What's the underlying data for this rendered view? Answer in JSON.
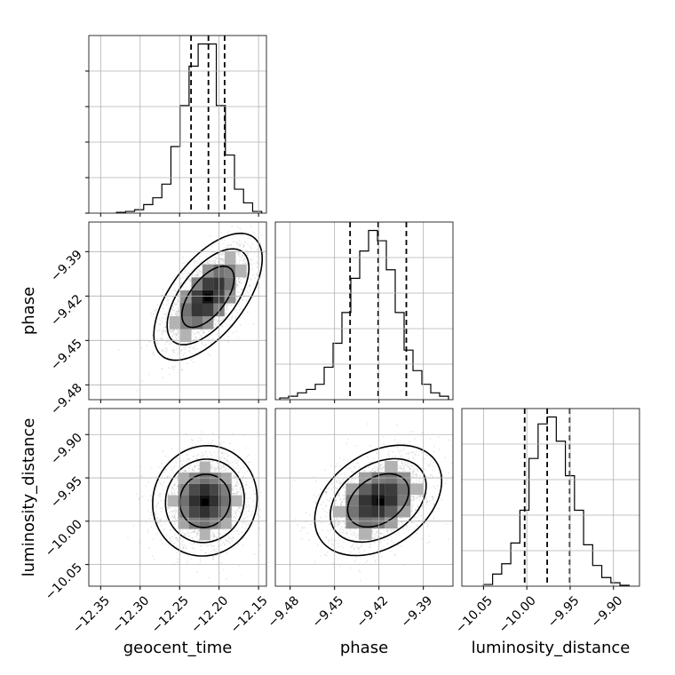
{
  "chart_data": {
    "type": "corner",
    "parameters": [
      {
        "name": "geocent_time",
        "label": "geocent_time",
        "range": [
          -12.365,
          -12.14
        ],
        "ticks": [
          -12.35,
          -12.3,
          -12.25,
          -12.2,
          -12.15
        ],
        "tick_labels": [
          "−12.35",
          "−12.30",
          "−12.25",
          "−12.20",
          "−12.15"
        ],
        "quantiles": [
          -12.2355,
          -12.2135,
          -12.193
        ],
        "histogram": {
          "bin_edges": [
            -12.33,
            -12.3185,
            -12.307,
            -12.2955,
            -12.284,
            -12.2725,
            -12.261,
            -12.2495,
            -12.238,
            -12.2265,
            -12.215,
            -12.2035,
            -12.192,
            -12.1805,
            -12.169,
            -12.1575,
            -12.146
          ],
          "counts": [
            0.005,
            0.01,
            0.02,
            0.05,
            0.09,
            0.17,
            0.39,
            0.63,
            0.86,
            0.99,
            0.99,
            0.63,
            0.34,
            0.14,
            0.06,
            0.01
          ]
        }
      },
      {
        "name": "phase",
        "label": "phase",
        "range": [
          -9.49,
          -9.37
        ],
        "ticks": [
          -9.48,
          -9.45,
          -9.42,
          -9.39
        ],
        "tick_labels": [
          "−9.48",
          "−9.45",
          "−9.42",
          "−9.39"
        ],
        "quantiles": [
          -9.4395,
          -9.4205,
          -9.4015
        ],
        "histogram": {
          "bin_edges": [
            -9.487,
            -9.481,
            -9.475,
            -9.469,
            -9.463,
            -9.457,
            -9.451,
            -9.445,
            -9.439,
            -9.433,
            -9.427,
            -9.421,
            -9.415,
            -9.409,
            -9.403,
            -9.397,
            -9.391,
            -9.385,
            -9.379,
            -9.373
          ],
          "counts": [
            0.01,
            0.02,
            0.04,
            0.06,
            0.09,
            0.19,
            0.33,
            0.51,
            0.71,
            0.87,
            0.99,
            0.93,
            0.76,
            0.51,
            0.29,
            0.17,
            0.09,
            0.04,
            0.02
          ]
        }
      },
      {
        "name": "luminosity_distance",
        "label": "luminosity_distance",
        "range": [
          -10.075,
          -9.87
        ],
        "ticks": [
          -10.05,
          -10.0,
          -9.95,
          -9.9
        ],
        "tick_labels": [
          "−10.05",
          "−10.00",
          "−9.95",
          "−9.90"
        ],
        "quantiles": [
          -10.0025,
          -9.9765,
          -9.9505
        ],
        "histogram": {
          "bin_edges": [
            -10.05,
            -10.0395,
            -10.029,
            -10.0185,
            -10.008,
            -9.9975,
            -9.987,
            -9.9765,
            -9.966,
            -9.9555,
            -9.945,
            -9.9345,
            -9.924,
            -9.9135,
            -9.903,
            -9.8925,
            -9.882
          ],
          "counts": [
            0.01,
            0.07,
            0.13,
            0.25,
            0.44,
            0.74,
            0.94,
            0.98,
            0.84,
            0.64,
            0.44,
            0.24,
            0.12,
            0.05,
            0.02,
            0.005
          ]
        }
      }
    ],
    "pairs": [
      {
        "x": "geocent_time",
        "y": "phase",
        "mean": [
          -12.214,
          -9.4205
        ],
        "sd": [
          0.028,
          0.0175
        ],
        "corr": 0.6,
        "peak": [
          -12.214,
          -9.421
        ],
        "contours": [
          {
            "level": 0.5,
            "scale": 1.18
          },
          {
            "level": 1.0,
            "scale": 1.85
          },
          {
            "level": 1.5,
            "scale": 2.45
          }
        ]
      },
      {
        "x": "geocent_time",
        "y": "luminosity_distance",
        "mean": [
          -12.218,
          -9.9765
        ],
        "sd": [
          0.027,
          0.026
        ],
        "corr": 0.05,
        "peak": [
          -12.218,
          -9.978
        ],
        "contours": [
          {
            "level": 0.5,
            "scale": 1.18
          },
          {
            "level": 1.0,
            "scale": 1.85
          },
          {
            "level": 1.5,
            "scale": 2.45
          }
        ]
      },
      {
        "x": "phase",
        "y": "luminosity_distance",
        "mean": [
          -9.4205,
          -9.976
        ],
        "sd": [
          0.0175,
          0.026
        ],
        "corr": 0.35,
        "peak": [
          -9.419,
          -9.978
        ],
        "contours": [
          {
            "level": 0.5,
            "scale": 1.18
          },
          {
            "level": 1.0,
            "scale": 1.85
          },
          {
            "level": 1.5,
            "scale": 2.45
          }
        ]
      }
    ],
    "grid": true,
    "scatter_color": "#808080",
    "line_color": "#000000",
    "grid_color": "#b0b0b0"
  }
}
